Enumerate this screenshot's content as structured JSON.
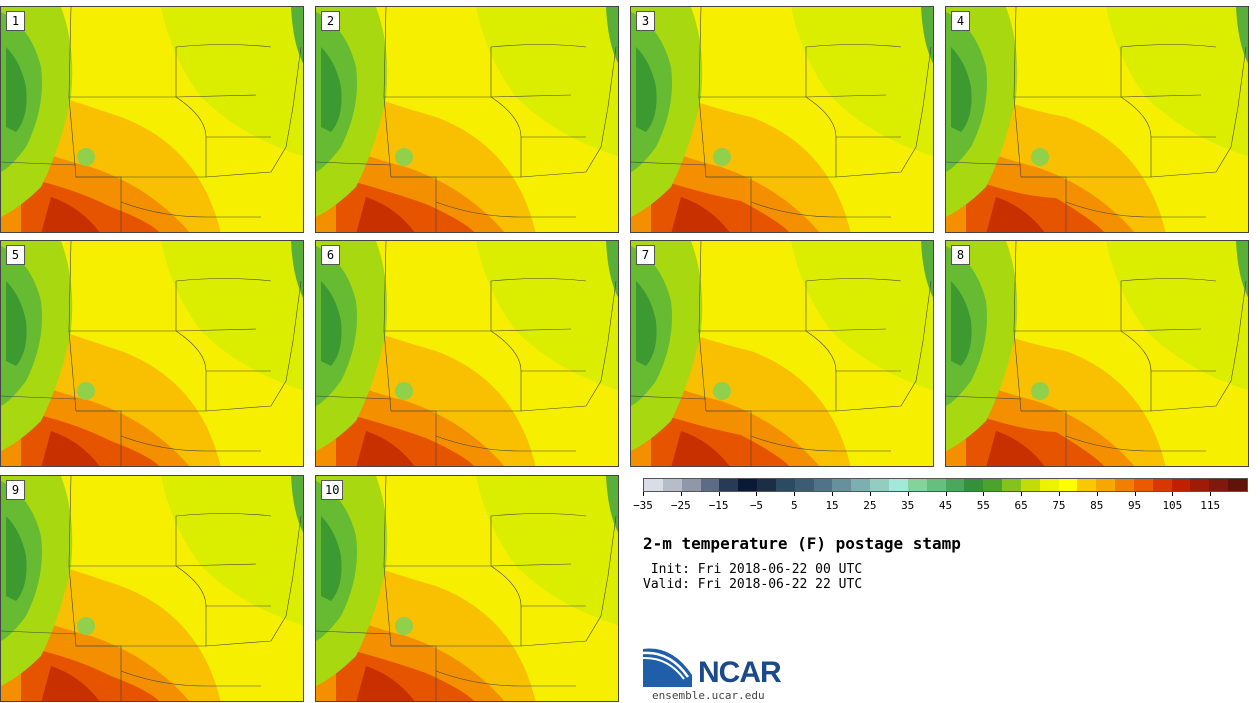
{
  "members": [
    {
      "label": "1"
    },
    {
      "label": "2"
    },
    {
      "label": "3"
    },
    {
      "label": "4"
    },
    {
      "label": "5"
    },
    {
      "label": "6"
    },
    {
      "label": "7"
    },
    {
      "label": "8"
    },
    {
      "label": "9"
    },
    {
      "label": "10"
    }
  ],
  "colorbar": {
    "colors": [
      "#d8dde6",
      "#b6bcc8",
      "#8f97a8",
      "#5d6b84",
      "#283a58",
      "#0a1a36",
      "#1b2e46",
      "#2c4a62",
      "#3c5c74",
      "#4f7488",
      "#65909c",
      "#7cb0b0",
      "#92cdc0",
      "#a3e8d8",
      "#86d29c",
      "#66bf7e",
      "#4aa85c",
      "#36903a",
      "#4da22e",
      "#85c21e",
      "#c2dc0a",
      "#eef200",
      "#ffff00",
      "#f8c800",
      "#f7a800",
      "#f28000",
      "#eb5a00",
      "#d83800",
      "#c02000",
      "#a01a08",
      "#80180c",
      "#601408"
    ],
    "tick_labels": [
      "−35",
      "−25",
      "−15",
      "−5",
      "5",
      "15",
      "25",
      "35",
      "45",
      "55",
      "65",
      "75",
      "85",
      "95",
      "105",
      "115"
    ]
  },
  "title": "2-m temperature (F) postage stamp",
  "init_line": " Init: Fri 2018-06-22 00 UTC",
  "valid_line": "Valid: Fri 2018-06-22 22 UTC",
  "logo": {
    "text": "NCAR",
    "url": "ensemble.ucar.edu"
  }
}
